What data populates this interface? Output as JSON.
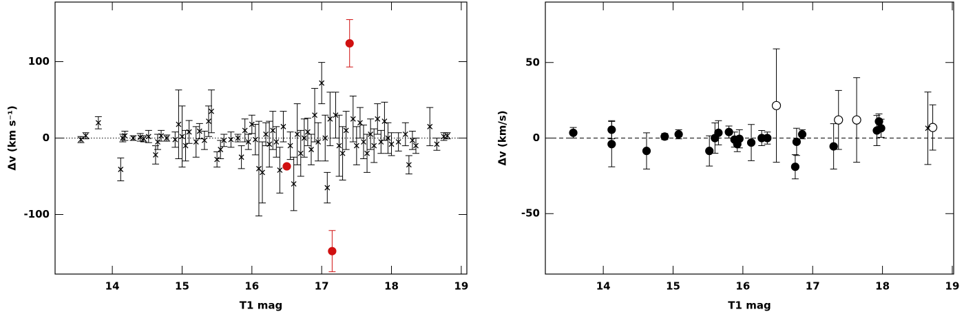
{
  "chart_data": [
    {
      "type": "scatter",
      "xlabel": "T1 mag",
      "ylabel": "Δv (km s⁻¹)",
      "xlim": [
        13.18,
        19.08
      ],
      "ylim": [
        -178,
        178
      ],
      "xticks": [
        14,
        15,
        16,
        17,
        18,
        19
      ],
      "yticks": [
        -100,
        0,
        100
      ],
      "hline": 0,
      "hline_style": "dotted",
      "series": [
        {
          "marker": "x",
          "color": "#000000",
          "x": [
            13.55,
            13.62,
            13.8,
            14.12,
            14.15,
            14.18,
            14.3,
            14.4,
            14.45,
            14.52,
            14.62,
            14.65,
            14.7,
            14.78,
            14.9,
            14.95,
            15.0,
            15.05,
            15.1,
            15.2,
            15.25,
            15.32,
            15.38,
            15.42,
            15.5,
            15.55,
            15.6,
            15.7,
            15.8,
            15.85,
            15.9,
            15.95,
            16.0,
            16.05,
            16.1,
            16.15,
            16.2,
            16.25,
            16.3,
            16.35,
            16.4,
            16.45,
            16.55,
            16.6,
            16.65,
            16.7,
            16.75,
            16.8,
            16.85,
            16.9,
            16.95,
            17.0,
            17.05,
            17.08,
            17.12,
            17.2,
            17.25,
            17.3,
            17.35,
            17.45,
            17.5,
            17.55,
            17.6,
            17.65,
            17.7,
            17.75,
            17.8,
            17.85,
            17.9,
            17.95,
            18.0,
            18.1,
            18.2,
            18.25,
            18.3,
            18.35,
            18.55,
            18.65,
            18.75,
            18.8
          ],
          "values": [
            -2,
            3,
            20,
            -41,
            0,
            3,
            0,
            1,
            -1,
            2,
            -22,
            -5,
            3,
            0,
            -2,
            18,
            2,
            -10,
            8,
            -5,
            9,
            -3,
            22,
            35,
            -28,
            -15,
            -3,
            -2,
            0,
            -25,
            10,
            -5,
            18,
            -2,
            -40,
            -45,
            5,
            -8,
            10,
            -5,
            -42,
            15,
            -10,
            -60,
            5,
            -20,
            0,
            8,
            -15,
            30,
            -5,
            72,
            0,
            -65,
            25,
            30,
            -10,
            -20,
            10,
            25,
            -10,
            20,
            -5,
            -20,
            5,
            -10,
            25,
            -5,
            22,
            0,
            -8,
            -5,
            5,
            -35,
            -3,
            -10,
            15,
            -8,
            2,
            3
          ],
          "errors": [
            4,
            4,
            8,
            15,
            5,
            6,
            3,
            5,
            4,
            8,
            12,
            10,
            7,
            4,
            10,
            45,
            40,
            20,
            15,
            20,
            10,
            12,
            20,
            28,
            10,
            12,
            8,
            10,
            5,
            15,
            15,
            10,
            12,
            20,
            62,
            40,
            15,
            30,
            25,
            20,
            30,
            20,
            18,
            35,
            40,
            30,
            25,
            18,
            20,
            35,
            25,
            27,
            30,
            20,
            35,
            30,
            40,
            35,
            25,
            30,
            25,
            20,
            22,
            25,
            20,
            22,
            20,
            15,
            25,
            20,
            15,
            12,
            15,
            12,
            12,
            10,
            25,
            8,
            5,
            4
          ]
        },
        {
          "marker": "filled circle",
          "color": "#d01010",
          "x": [
            16.5,
            17.4,
            17.15
          ],
          "values": [
            -37,
            124,
            -148
          ],
          "errors": [
            0,
            31,
            27
          ]
        }
      ]
    },
    {
      "type": "scatter",
      "xlabel": "T1 mag",
      "ylabel": "Δv (km/s)",
      "xlim": [
        13.17,
        19.02
      ],
      "ylim": [
        -90,
        90
      ],
      "xticks": [
        14,
        15,
        16,
        17,
        18,
        19
      ],
      "yticks": [
        -50,
        0,
        50
      ],
      "hline": 0,
      "hline_style": "dashed",
      "series": [
        {
          "marker": "filled circle",
          "color": "#000000",
          "x": [
            13.57,
            14.12,
            14.12,
            14.62,
            14.88,
            15.08,
            15.52,
            15.6,
            15.65,
            15.8,
            15.88,
            15.92,
            15.95,
            16.12,
            16.27,
            16.35,
            16.75,
            16.77,
            16.85,
            17.3,
            17.92,
            17.95,
            17.98
          ],
          "values": [
            3.5,
            5.5,
            -4,
            -8.5,
            1,
            2.5,
            -8.5,
            0,
            3.5,
            4,
            -1,
            -4,
            -0.5,
            -3,
            0,
            0,
            -19,
            -2.5,
            2.5,
            -5.5,
            5,
            11,
            6.5
          ],
          "errors": [
            3.5,
            6,
            15,
            12,
            2,
            3,
            10,
            10,
            8,
            4,
            5,
            5,
            6,
            12,
            5,
            4,
            8,
            9,
            3,
            15,
            10,
            5,
            6
          ]
        },
        {
          "marker": "open circle",
          "color": "#000000",
          "x": [
            16.48,
            17.37,
            17.63,
            18.72
          ],
          "values": [
            21.5,
            12,
            12,
            7
          ],
          "errors": [
            37.5,
            19.5,
            28,
            15
          ]
        },
        {
          "marker": "x",
          "color": "#000000",
          "x": [
            18.65
          ],
          "values": [
            6.5
          ],
          "errors": [
            24
          ]
        }
      ]
    }
  ]
}
